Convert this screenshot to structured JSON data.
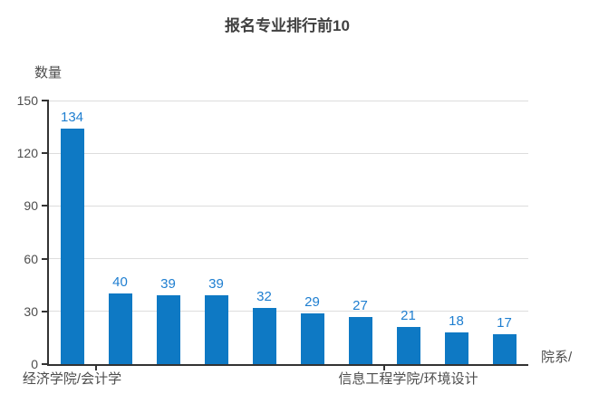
{
  "colors": {
    "bar": "#0e79c4",
    "value_label": "#1e7ed0",
    "axis": "#333333",
    "grid": "#dddddd",
    "text": "#4d4d4d",
    "title": "#404040"
  },
  "chart_data": {
    "type": "bar",
    "title": "报名专业排行前10",
    "ylabel": "数量",
    "xlabel": "院系/",
    "categories": [
      "经济学院/会计学",
      null,
      null,
      null,
      null,
      null,
      null,
      "信息工程学院/环境设计",
      null,
      null
    ],
    "values": [
      134,
      40,
      39,
      39,
      32,
      29,
      27,
      21,
      18,
      17
    ],
    "yticks": [
      0,
      30,
      60,
      90,
      120,
      150
    ],
    "ylim": [
      0,
      150
    ],
    "grid": true,
    "legend_position": "none",
    "x_axis_labels": [
      {
        "index": 0,
        "label": "经济学院/会计学"
      },
      {
        "index": 7,
        "label": "信息工程学院/环境设计"
      }
    ],
    "x_tick_boundaries": [
      1,
      7
    ]
  }
}
